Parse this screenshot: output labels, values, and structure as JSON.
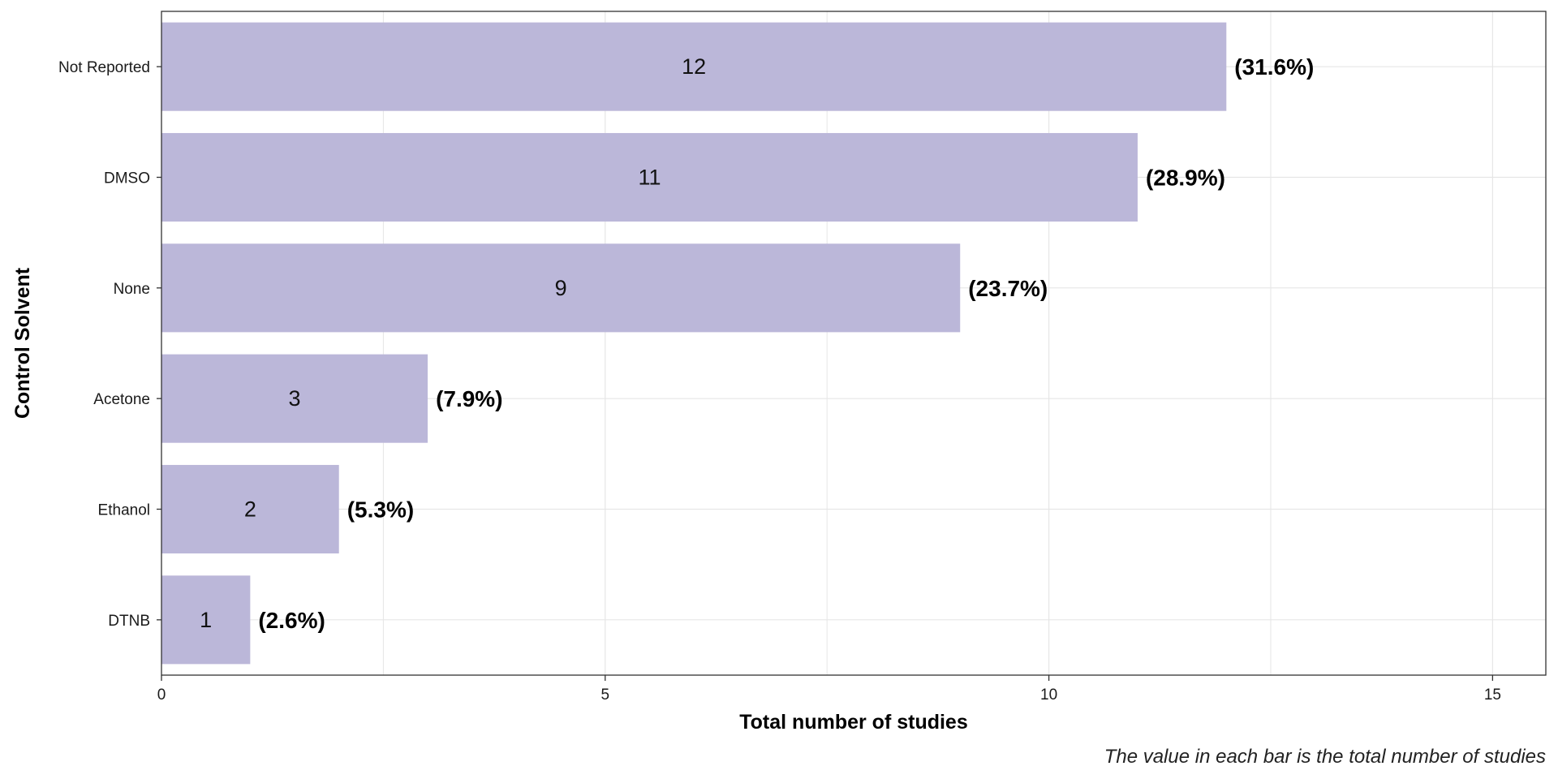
{
  "chart_data": {
    "type": "bar",
    "orientation": "horizontal",
    "categories": [
      "Not Reported",
      "DMSO",
      "None",
      "Acetone",
      "Ethanol",
      "DTNB"
    ],
    "values": [
      12,
      11,
      9,
      3,
      2,
      1
    ],
    "value_labels": [
      "12",
      "11",
      "9",
      "3",
      "2",
      "1"
    ],
    "percent_labels": [
      "(31.6%)",
      "(28.9%)",
      "(23.7%)",
      "(7.9%)",
      "(5.3%)",
      "(2.6%)"
    ],
    "xlabel": "Total number of studies",
    "ylabel": "Control Solvent",
    "caption": "The value in each bar is the total number of studies",
    "xlim": [
      0,
      15.6
    ],
    "xticks": [
      0,
      5,
      10,
      15
    ],
    "xtick_labels": [
      "0",
      "5",
      "10",
      "15"
    ],
    "grid": true,
    "bar_color": "#bbb7d9",
    "grid_color": "#e6e6e6"
  }
}
